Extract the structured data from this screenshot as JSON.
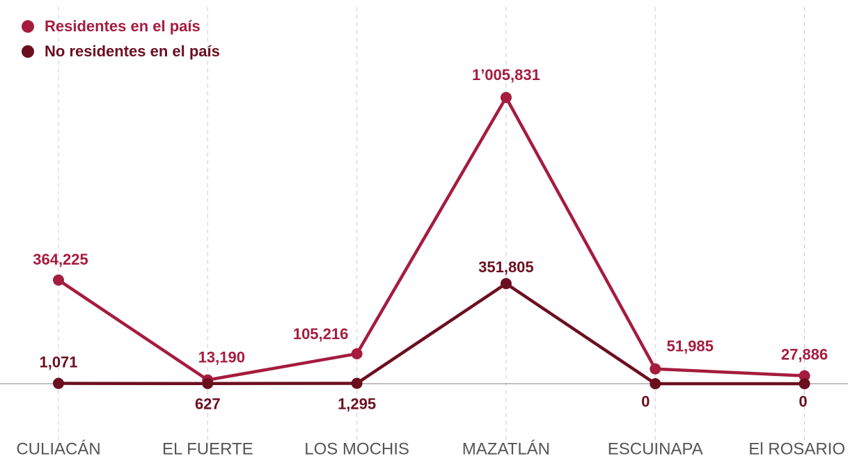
{
  "chart_data": {
    "type": "line",
    "categories": [
      "CULIACÁN",
      "EL FUERTE",
      "LOS MOCHIS",
      "MAZATLÁN",
      "ESCUINAPA",
      "El ROSARIO"
    ],
    "series": [
      {
        "name": "Residentes en el país",
        "color": "#a51c3f",
        "values": [
          364225,
          13190,
          105216,
          1005831,
          51985,
          27886
        ],
        "value_labels": [
          "364,225",
          "13,190",
          "105,216",
          "1’005,831",
          "51,985",
          "27,886"
        ]
      },
      {
        "name": "No residentes en el país",
        "color": "#6b0f1f",
        "values": [
          1071,
          627,
          1295,
          351805,
          0,
          0
        ],
        "value_labels": [
          "1,071",
          "627",
          "1,295",
          "351,805",
          "0",
          "0"
        ]
      }
    ]
  }
}
